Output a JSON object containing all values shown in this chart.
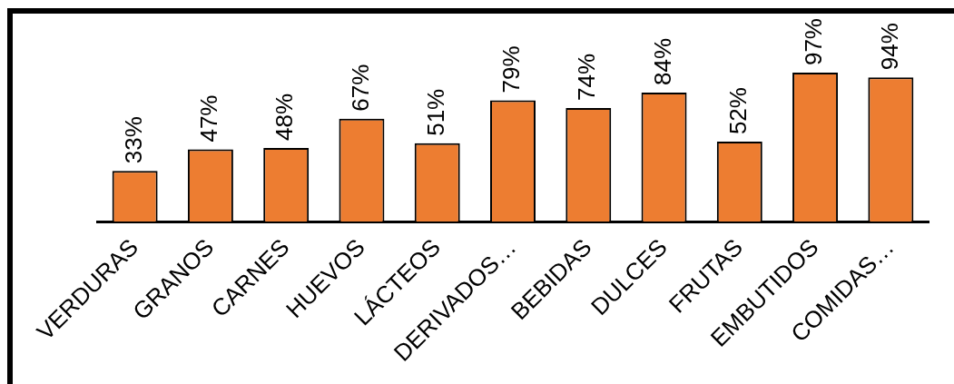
{
  "chart_data": {
    "type": "bar",
    "categories": [
      "VERDURAS",
      "GRANOS",
      "CARNES",
      "HUEVOS",
      "LÁCTEOS",
      "DERIVADOS…",
      "BEBIDAS",
      "DULCES",
      "FRUTAS",
      "EMBUTIDOS",
      "COMIDAS…"
    ],
    "values": [
      33,
      47,
      48,
      67,
      51,
      79,
      74,
      84,
      52,
      97,
      94
    ],
    "color": "#ed7d31",
    "value_labels": [
      "33%",
      "47%",
      "48%",
      "67%",
      "51%",
      "79%",
      "74%",
      "84%",
      "52%",
      "97%",
      "94%"
    ]
  }
}
